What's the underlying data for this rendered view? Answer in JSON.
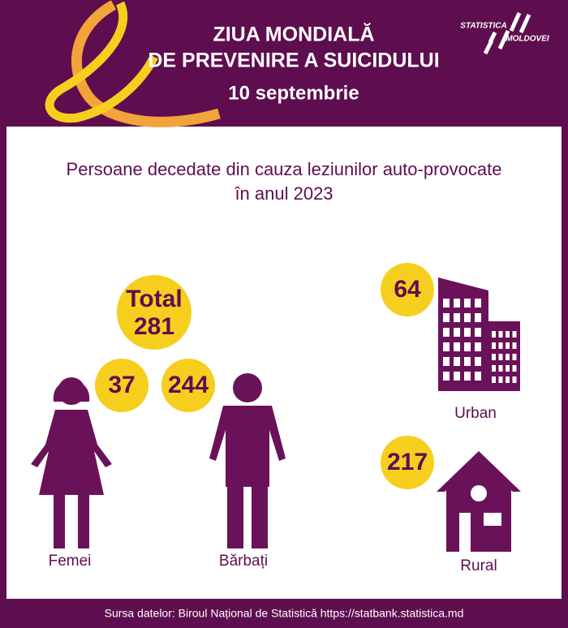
{
  "header": {
    "title_line1": "ZIUA MONDIALĂ",
    "title_line2": "DE PREVENIRE A SUICIDULUI",
    "date": "10 septembrie",
    "logo_top": "STATISTICA",
    "logo_bottom": "MOLDOVEI"
  },
  "subtitle": {
    "line1": "Persoane decedate din cauza leziunilor auto-provocate",
    "line2": "în anul 2023"
  },
  "total": {
    "label": "Total",
    "value": 281
  },
  "sex": [
    {
      "label": "Femei",
      "value": 37
    },
    {
      "label": "Bărbați",
      "value": 244
    }
  ],
  "area": [
    {
      "label": "Urban",
      "value": 64
    },
    {
      "label": "Rural",
      "value": 217
    }
  ],
  "footer": "Sursa datelor: Biroul Național de Statistică https://statbank.statistica.md"
}
